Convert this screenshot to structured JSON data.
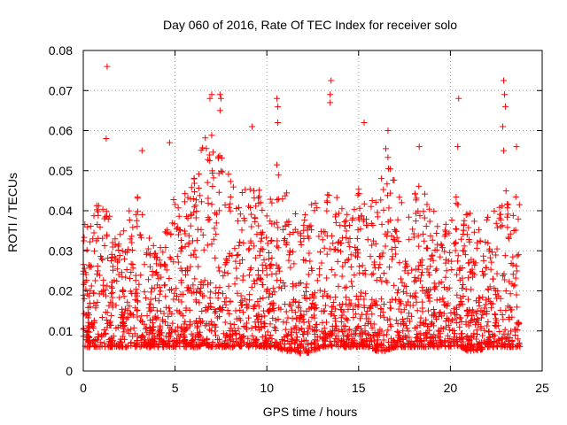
{
  "chart_data": {
    "type": "scatter",
    "title": "Day 060 of 2016, Rate Of TEC Index for receiver solo",
    "xlabel": "GPS time / hours",
    "ylabel": "ROTI / TECUs",
    "xlim": [
      0,
      25
    ],
    "ylim": [
      0,
      0.08
    ],
    "grid": true,
    "marker": "+",
    "color": "#ff0000",
    "x_ticks": [
      "0",
      "5",
      "10",
      "15",
      "20",
      "25"
    ],
    "y_ticks": [
      "0",
      "0.01",
      "0.02",
      "0.03",
      "0.04",
      "0.05",
      "0.06",
      "0.07",
      "0.08"
    ],
    "envelope": {
      "hours": [
        0.0,
        0.5,
        1.0,
        1.5,
        2.0,
        2.5,
        3.0,
        3.5,
        4.0,
        4.5,
        5.0,
        5.5,
        6.0,
        6.5,
        7.0,
        7.5,
        8.0,
        8.5,
        9.0,
        9.5,
        10.0,
        10.5,
        11.0,
        11.5,
        12.0,
        12.5,
        13.0,
        13.5,
        14.0,
        14.5,
        15.0,
        15.5,
        16.0,
        16.5,
        17.0,
        17.5,
        18.0,
        18.5,
        19.0,
        19.5,
        20.0,
        20.5,
        21.0,
        21.5,
        22.0,
        22.5,
        23.0,
        23.5,
        23.8
      ],
      "upper": [
        0.036,
        0.042,
        0.044,
        0.038,
        0.034,
        0.04,
        0.046,
        0.036,
        0.03,
        0.036,
        0.046,
        0.044,
        0.05,
        0.058,
        0.062,
        0.056,
        0.048,
        0.044,
        0.05,
        0.046,
        0.044,
        0.052,
        0.046,
        0.04,
        0.04,
        0.042,
        0.044,
        0.046,
        0.042,
        0.04,
        0.046,
        0.042,
        0.044,
        0.056,
        0.05,
        0.046,
        0.044,
        0.048,
        0.042,
        0.038,
        0.04,
        0.046,
        0.04,
        0.036,
        0.04,
        0.04,
        0.046,
        0.044,
        0.046
      ],
      "lower": [
        0.006,
        0.006,
        0.006,
        0.006,
        0.006,
        0.006,
        0.006,
        0.006,
        0.006,
        0.006,
        0.006,
        0.006,
        0.006,
        0.006,
        0.006,
        0.006,
        0.006,
        0.006,
        0.006,
        0.006,
        0.006,
        0.006,
        0.005,
        0.005,
        0.004,
        0.005,
        0.006,
        0.006,
        0.006,
        0.006,
        0.006,
        0.006,
        0.005,
        0.005,
        0.006,
        0.006,
        0.006,
        0.006,
        0.006,
        0.006,
        0.006,
        0.006,
        0.005,
        0.005,
        0.006,
        0.006,
        0.006,
        0.006,
        0.006
      ]
    },
    "peaks": [
      {
        "x": 1.3,
        "y": 0.076
      },
      {
        "x": 1.25,
        "y": 0.058
      },
      {
        "x": 3.2,
        "y": 0.055
      },
      {
        "x": 4.7,
        "y": 0.057
      },
      {
        "x": 6.9,
        "y": 0.068
      },
      {
        "x": 7.0,
        "y": 0.069
      },
      {
        "x": 7.45,
        "y": 0.069
      },
      {
        "x": 7.5,
        "y": 0.068
      },
      {
        "x": 7.45,
        "y": 0.065
      },
      {
        "x": 9.2,
        "y": 0.061
      },
      {
        "x": 10.55,
        "y": 0.068
      },
      {
        "x": 10.6,
        "y": 0.066
      },
      {
        "x": 10.6,
        "y": 0.062
      },
      {
        "x": 13.5,
        "y": 0.0725
      },
      {
        "x": 13.45,
        "y": 0.069
      },
      {
        "x": 13.45,
        "y": 0.067
      },
      {
        "x": 15.3,
        "y": 0.062
      },
      {
        "x": 16.6,
        "y": 0.06
      },
      {
        "x": 18.3,
        "y": 0.056
      },
      {
        "x": 20.45,
        "y": 0.068
      },
      {
        "x": 20.4,
        "y": 0.056
      },
      {
        "x": 22.9,
        "y": 0.0725
      },
      {
        "x": 22.95,
        "y": 0.069
      },
      {
        "x": 23.0,
        "y": 0.066
      },
      {
        "x": 22.85,
        "y": 0.061
      },
      {
        "x": 22.9,
        "y": 0.055
      },
      {
        "x": 23.6,
        "y": 0.056
      }
    ]
  }
}
